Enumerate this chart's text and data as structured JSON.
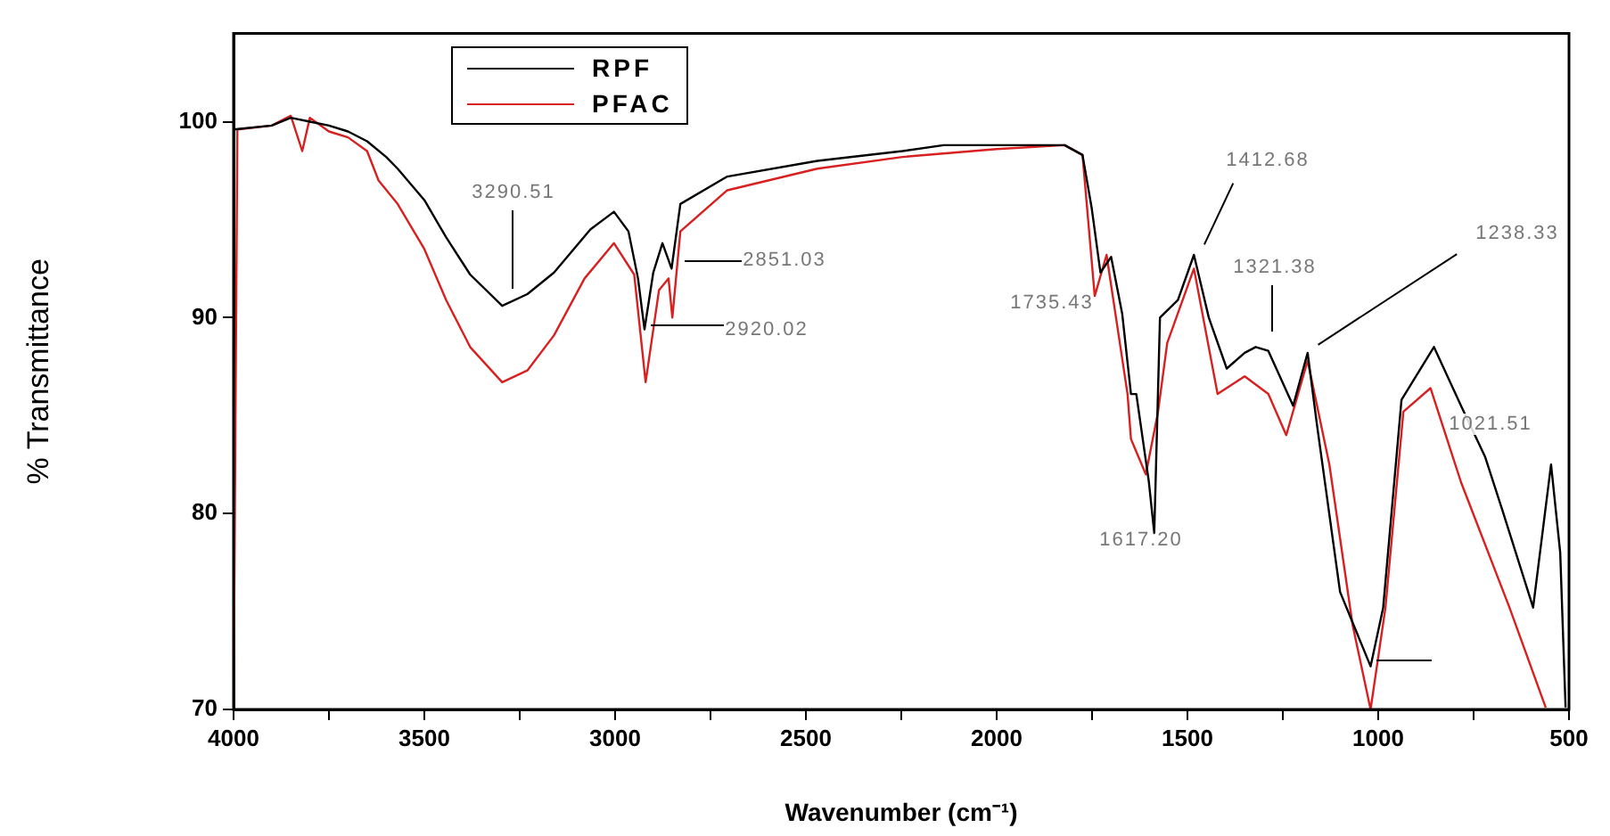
{
  "chart_data": {
    "type": "line",
    "xlabel": "Wavenumber (cm⁻¹)",
    "ylabel": "% Transmittance",
    "xlim": [
      4000,
      500
    ],
    "ylim": [
      70,
      104.5
    ],
    "xticks": [
      4000,
      {
        "value": 3750,
        "label": null
      },
      3500,
      {
        "value": 3250,
        "label": null
      },
      3000,
      {
        "value": 2750,
        "label": null
      },
      2500,
      {
        "value": 2250,
        "label": null
      },
      2000,
      {
        "value": 1750,
        "label": null
      },
      1500,
      {
        "value": 1250,
        "label": null
      },
      1000,
      {
        "value": 750,
        "label": null
      },
      500
    ],
    "yticks": [
      70,
      80,
      90,
      100
    ],
    "grid": false,
    "legend": "top left",
    "marker": "none",
    "line_style": "solid",
    "series": [
      {
        "name": "RPF",
        "color": "#000000",
        "x": [
          4000,
          3900,
          3850,
          3800,
          3750,
          3700,
          3650,
          3600,
          3570,
          3500,
          3443,
          3380,
          3296,
          3230,
          3160,
          3065,
          3003,
          2965,
          2940,
          2923,
          2900,
          2876,
          2852,
          2829,
          2706,
          2470,
          2247,
          2139,
          2000,
          1822,
          1775,
          1751,
          1728,
          1700,
          1671,
          1648,
          1634,
          1601,
          1587,
          1572,
          1525,
          1483,
          1444,
          1397,
          1350,
          1321,
          1288,
          1223,
          1185,
          1161,
          1100,
          1020,
          987,
          939,
          854,
          783,
          720,
          675,
          594,
          547,
          523,
          509
        ],
        "values": [
          99.6,
          99.8,
          100.2,
          100.0,
          99.8,
          99.5,
          99.0,
          98.2,
          97.6,
          96.0,
          94.1,
          92.2,
          90.6,
          91.2,
          92.3,
          94.5,
          95.4,
          94.4,
          92.0,
          89.4,
          92.3,
          93.8,
          92.5,
          95.8,
          97.2,
          98.0,
          98.5,
          98.8,
          98.8,
          98.8,
          98.3,
          95.6,
          92.3,
          93.1,
          90.2,
          86.1,
          86.1,
          81.6,
          79.0,
          90.0,
          90.9,
          93.2,
          90.0,
          87.4,
          88.2,
          88.5,
          88.3,
          85.5,
          88.2,
          84.6,
          76.0,
          72.2,
          75.2,
          85.8,
          88.5,
          85.5,
          82.9,
          80.2,
          75.2,
          82.5,
          78.0,
          70.1
        ]
      },
      {
        "name": "PFAC",
        "color": "#d82020",
        "x": [
          4000,
          3990,
          3900,
          3850,
          3820,
          3800,
          3750,
          3700,
          3650,
          3620,
          3570,
          3500,
          3443,
          3380,
          3296,
          3230,
          3160,
          3080,
          3003,
          2950,
          2920,
          2885,
          2860,
          2850,
          2829,
          2706,
          2470,
          2247,
          2000,
          1822,
          1775,
          1743,
          1712,
          1657,
          1648,
          1609,
          1577,
          1553,
          1483,
          1421,
          1350,
          1288,
          1241,
          1185,
          1128,
          1067,
          1020,
          981,
          934,
          863,
          783,
          656,
          561
        ],
        "values": [
          70,
          99.6,
          99.8,
          100.3,
          98.5,
          100.2,
          99.5,
          99.2,
          98.5,
          97.0,
          95.8,
          93.5,
          90.9,
          88.5,
          86.7,
          87.3,
          89.1,
          92.0,
          93.8,
          92.2,
          86.7,
          91.4,
          92.0,
          90.0,
          94.4,
          96.5,
          97.6,
          98.2,
          98.6,
          98.8,
          98.3,
          91.1,
          93.2,
          86.1,
          83.8,
          82.0,
          85.2,
          88.7,
          92.5,
          86.1,
          87.0,
          86.1,
          84.0,
          87.8,
          82.5,
          74.3,
          70.0,
          75.2,
          85.2,
          86.4,
          81.6,
          75.2,
          70.1
        ]
      }
    ],
    "annotations": [
      "3290.51",
      "2920.02",
      "2851.03",
      "1735.43",
      "1412.68",
      "1321.38",
      "1238.33",
      "1617.20",
      "1021.51"
    ]
  }
}
